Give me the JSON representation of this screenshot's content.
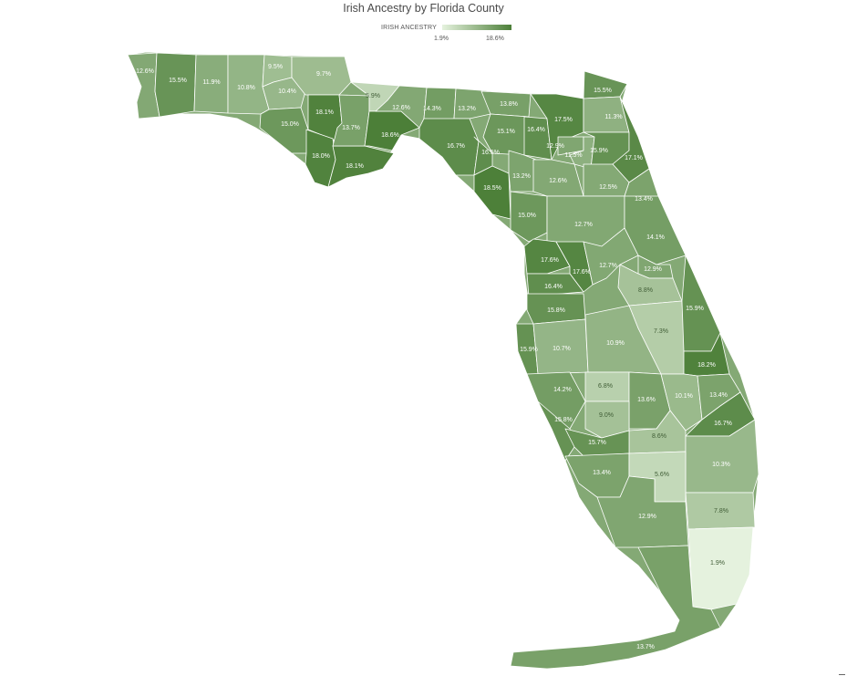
{
  "title": "Irish Ancestry by Florida County",
  "legend": {
    "label": "IRISH ANCESTRY",
    "min_label": "1.9%",
    "max_label": "18.6%",
    "min_color": "#e5f2de",
    "max_color": "#4c7f38"
  },
  "colors": {
    "border": "#ffffff",
    "label_light_bg": "#3f5c35",
    "label_dark_bg": "#ffffff"
  },
  "chart_data": {
    "type": "choropleth",
    "title": "Irish Ancestry by Florida County",
    "legend_label": "IRISH ANCESTRY",
    "unit": "%",
    "range": [
      1.9,
      18.6
    ],
    "counties": [
      {
        "label": "12.6%",
        "value": 12.6
      },
      {
        "label": "15.5%",
        "value": 15.5
      },
      {
        "label": "11.9%",
        "value": 11.9
      },
      {
        "label": "10.8%",
        "value": 10.8
      },
      {
        "label": "9.5%",
        "value": 9.5
      },
      {
        "label": "10.4%",
        "value": 10.4
      },
      {
        "label": "9.7%",
        "value": 9.7
      },
      {
        "label": "15.0%",
        "value": 15.0
      },
      {
        "label": "18.1%",
        "value": 18.1
      },
      {
        "label": "18.0%",
        "value": 18.0
      },
      {
        "label": "18.1%",
        "value": 18.1
      },
      {
        "label": "13.7%",
        "value": 13.7
      },
      {
        "label": "5.9%",
        "value": 5.9
      },
      {
        "label": "18.6%",
        "value": 18.6
      },
      {
        "label": "12.6%",
        "value": 12.6
      },
      {
        "label": "14.3%",
        "value": 14.3
      },
      {
        "label": "13.2%",
        "value": 13.2
      },
      {
        "label": "13.8%",
        "value": 13.8
      },
      {
        "label": "16.7%",
        "value": 16.7
      },
      {
        "label": "15.1%",
        "value": 15.1
      },
      {
        "label": "16.5%",
        "value": 16.5
      },
      {
        "label": "16.4%",
        "value": 16.4
      },
      {
        "label": "17.5%",
        "value": 17.5
      },
      {
        "label": "15.5%",
        "value": 15.5
      },
      {
        "label": "11.3%",
        "value": 11.3
      },
      {
        "label": "12.9%",
        "value": 12.9
      },
      {
        "label": "11.5%",
        "value": 11.5
      },
      {
        "label": "15.9%",
        "value": 15.9
      },
      {
        "label": "17.1%",
        "value": 17.1
      },
      {
        "label": "18.5%",
        "value": 18.5
      },
      {
        "label": "13.2%",
        "value": 13.2
      },
      {
        "label": "12.6%",
        "value": 12.6
      },
      {
        "label": "12.5%",
        "value": 12.5
      },
      {
        "label": "13.4%",
        "value": 13.4
      },
      {
        "label": "15.0%",
        "value": 15.0
      },
      {
        "label": "12.7%",
        "value": 12.7
      },
      {
        "label": "14.1%",
        "value": 14.1
      },
      {
        "label": "17.6%",
        "value": 17.6
      },
      {
        "label": "17.6%",
        "value": 17.6
      },
      {
        "label": "12.7%",
        "value": 12.7
      },
      {
        "label": "12.9%",
        "value": 12.9
      },
      {
        "label": "16.4%",
        "value": 16.4
      },
      {
        "label": "8.8%",
        "value": 8.8
      },
      {
        "label": "15.8%",
        "value": 15.8
      },
      {
        "label": "15.9%",
        "value": 15.9
      },
      {
        "label": "7.3%",
        "value": 7.3
      },
      {
        "label": "15.9%",
        "value": 15.9
      },
      {
        "label": "10.7%",
        "value": 10.7
      },
      {
        "label": "10.9%",
        "value": 10.9
      },
      {
        "label": "18.2%",
        "value": 18.2
      },
      {
        "label": "14.2%",
        "value": 14.2
      },
      {
        "label": "6.8%",
        "value": 6.8
      },
      {
        "label": "13.6%",
        "value": 13.6
      },
      {
        "label": "10.1%",
        "value": 10.1
      },
      {
        "label": "13.4%",
        "value": 13.4
      },
      {
        "label": "15.8%",
        "value": 15.8
      },
      {
        "label": "9.0%",
        "value": 9.0
      },
      {
        "label": "16.7%",
        "value": 16.7
      },
      {
        "label": "8.6%",
        "value": 8.6
      },
      {
        "label": "15.7%",
        "value": 15.7
      },
      {
        "label": "10.3%",
        "value": 10.3
      },
      {
        "label": "13.4%",
        "value": 13.4
      },
      {
        "label": "5.6%",
        "value": 5.6
      },
      {
        "label": "12.9%",
        "value": 12.9
      },
      {
        "label": "7.8%",
        "value": 7.8
      },
      {
        "label": "1.9%",
        "value": 1.9
      },
      {
        "label": "13.7%",
        "value": 13.7
      }
    ]
  }
}
